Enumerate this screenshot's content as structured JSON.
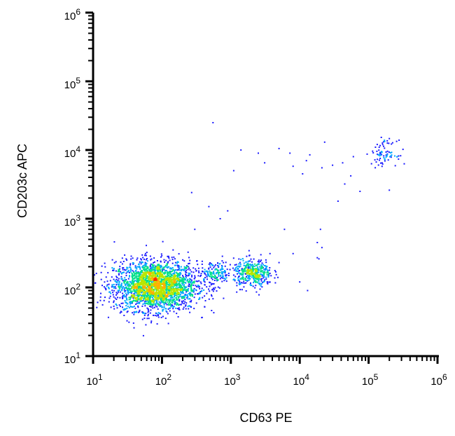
{
  "chart_data": {
    "type": "scatter",
    "style": "flow-cytometry density dot plot (pseudocolor)",
    "xscale": "log",
    "yscale": "log",
    "xlabel": "CD63 PE",
    "ylabel": "CD203c APC",
    "xlim": [
      10,
      1000000
    ],
    "ylim": [
      10,
      1000000
    ],
    "x_ticks": [
      {
        "mantissa": "10",
        "exp": "1",
        "value": 10
      },
      {
        "mantissa": "10",
        "exp": "2",
        "value": 100
      },
      {
        "mantissa": "10",
        "exp": "3",
        "value": 1000
      },
      {
        "mantissa": "10",
        "exp": "4",
        "value": 10000
      },
      {
        "mantissa": "10",
        "exp": "5",
        "value": 100000
      },
      {
        "mantissa": "10",
        "exp": "6",
        "value": 1000000
      }
    ],
    "y_ticks": [
      {
        "mantissa": "10",
        "exp": "1",
        "value": 10
      },
      {
        "mantissa": "10",
        "exp": "2",
        "value": 100
      },
      {
        "mantissa": "10",
        "exp": "3",
        "value": 1000
      },
      {
        "mantissa": "10",
        "exp": "4",
        "value": 10000
      },
      {
        "mantissa": "10",
        "exp": "5",
        "value": 100000
      },
      {
        "mantissa": "10",
        "exp": "6",
        "value": 1000000
      }
    ],
    "grid": false,
    "legend": "none",
    "colormap": [
      "#1a1aff",
      "#00a6ff",
      "#00e08a",
      "#b8e600",
      "#ffb000",
      "#ff2a00"
    ],
    "populations": [
      {
        "center": [
          80,
          105
        ],
        "spread_decades": [
          0.3,
          0.18
        ],
        "count": 2600
      },
      {
        "center": [
          2100,
          160
        ],
        "spread_decades": [
          0.14,
          0.1
        ],
        "count": 420
      },
      {
        "center": [
          170000,
          9000
        ],
        "spread_decades": [
          0.09,
          0.09
        ],
        "count": 80
      },
      {
        "center": [
          600,
          160
        ],
        "spread_decades": [
          0.12,
          0.09
        ],
        "count": 160
      }
    ],
    "scattered_events": [
      [
        550,
        25000
      ],
      [
        1100,
        5000
      ],
      [
        1400,
        10000
      ],
      [
        2500,
        9000
      ],
      [
        3100,
        6500
      ],
      [
        5000,
        10500
      ],
      [
        7200,
        9000
      ],
      [
        8000,
        5800
      ],
      [
        11000,
        4500
      ],
      [
        12500,
        7000
      ],
      [
        14000,
        8500
      ],
      [
        21000,
        5500
      ],
      [
        23000,
        13000
      ],
      [
        30000,
        6000
      ],
      [
        36000,
        1800
      ],
      [
        42000,
        6500
      ],
      [
        45000,
        3200
      ],
      [
        55000,
        4200
      ],
      [
        60000,
        8000
      ],
      [
        75000,
        2500
      ],
      [
        900,
        1300
      ],
      [
        700,
        1000
      ],
      [
        480,
        1500
      ],
      [
        300,
        700
      ],
      [
        270,
        2400
      ],
      [
        20000,
        700
      ],
      [
        18000,
        450
      ],
      [
        21000,
        380
      ],
      [
        10000,
        120
      ],
      [
        13000,
        90
      ],
      [
        18000,
        270
      ],
      [
        8000,
        310
      ],
      [
        5000,
        230
      ],
      [
        3700,
        310
      ],
      [
        200000,
        2600
      ],
      [
        19000,
        260
      ],
      [
        6000,
        700
      ]
    ]
  }
}
